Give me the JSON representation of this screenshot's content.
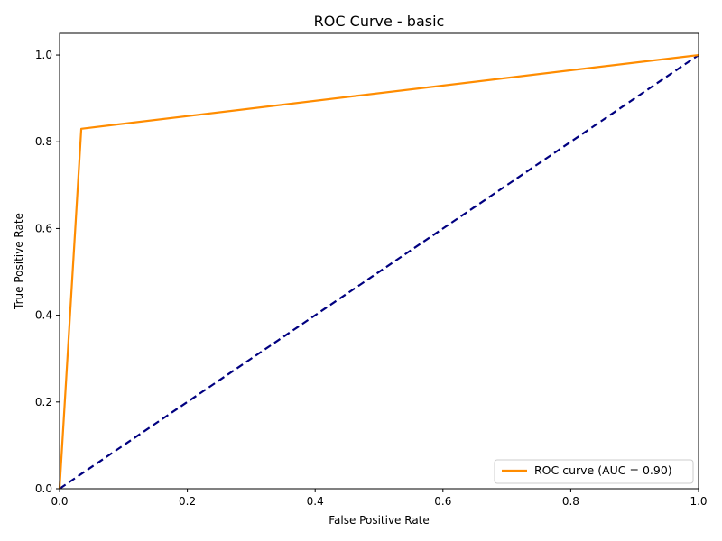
{
  "chart_data": {
    "type": "line",
    "title": "ROC Curve - basic",
    "xlabel": "False Positive Rate",
    "ylabel": "True Positive Rate",
    "xlim": [
      0.0,
      1.0
    ],
    "ylim": [
      0.0,
      1.05
    ],
    "x_ticks": [
      "0.0",
      "0.2",
      "0.4",
      "0.6",
      "0.8",
      "1.0"
    ],
    "y_ticks": [
      "0.0",
      "0.2",
      "0.4",
      "0.6",
      "0.8",
      "1.0"
    ],
    "grid": false,
    "legend_position": "lower-right",
    "series": [
      {
        "name": "ROC curve (AUC = 0.90)",
        "color": "#ff8c00",
        "style": "solid",
        "x": [
          0.0,
          0.034,
          1.0
        ],
        "y": [
          0.0,
          0.83,
          1.0
        ]
      },
      {
        "color": "#000080",
        "style": "dashed",
        "x": [
          0.0,
          1.0
        ],
        "y": [
          0.0,
          1.0
        ]
      }
    ]
  }
}
